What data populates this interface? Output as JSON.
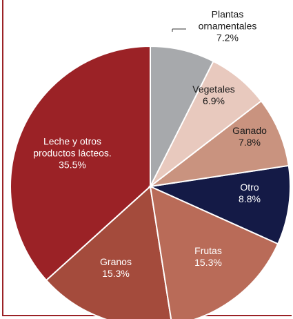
{
  "chart_data": {
    "type": "pie",
    "categories": [
      "Plantas ornamentales",
      "Vegetales",
      "Ganado",
      "Otro",
      "Frutas",
      "Granos",
      "Leche y otros productos lácteos."
    ],
    "values": [
      7.2,
      6.9,
      7.8,
      8.8,
      15.3,
      15.3,
      35.5
    ],
    "value_labels": [
      "7.2%",
      "6.9%",
      "7.8%",
      "8.8%",
      "15.3%",
      "15.3%",
      "35.5%"
    ],
    "colors": [
      "#a7a9ac",
      "#e8c9be",
      "#c9937f",
      "#141a46",
      "#b96b58",
      "#a44b3c",
      "#9b2226"
    ]
  }
}
